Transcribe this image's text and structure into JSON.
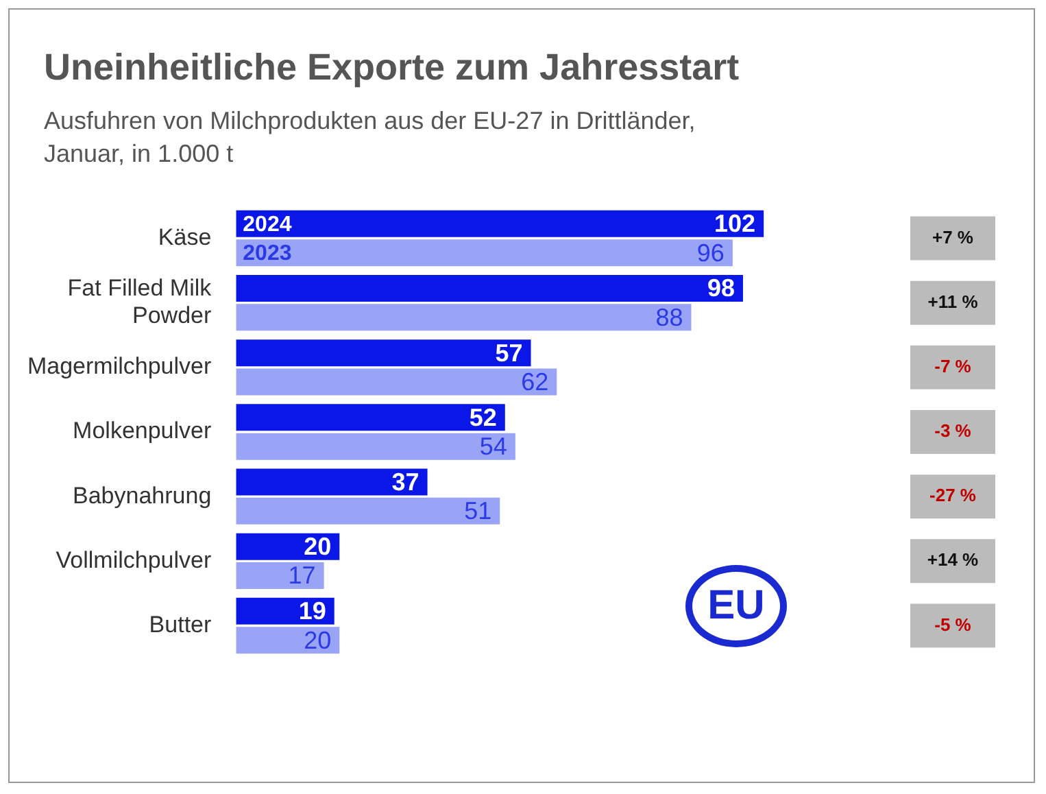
{
  "chart_data": {
    "type": "bar",
    "orientation": "horizontal",
    "title": "Uneinheitliche Exporte zum Jahresstart",
    "subtitle": "Ausfuhren von Milchprodukten aus der EU-27 in Drittländer, Januar, in 1.000 t",
    "categories": [
      "Käse",
      "Fat Filled Milk Powder",
      "Magermilchpulver",
      "Molkenpulver",
      "Babynahrung",
      "Vollmilchpulver",
      "Butter"
    ],
    "series": [
      {
        "name": "2024",
        "color": "#0b17e6",
        "values": [
          102,
          98,
          57,
          52,
          37,
          20,
          19
        ]
      },
      {
        "name": "2023",
        "color": "#9aa4f6",
        "values": [
          96,
          88,
          62,
          54,
          51,
          17,
          20
        ]
      }
    ],
    "data_labels": true,
    "legend": false,
    "tick_labels": "y",
    "annotations": [
      "+7 %",
      "+11 %",
      "-7 %",
      "-3 %",
      "-27 %",
      "+14 %",
      "-5 %",
      "EU"
    ]
  }
}
